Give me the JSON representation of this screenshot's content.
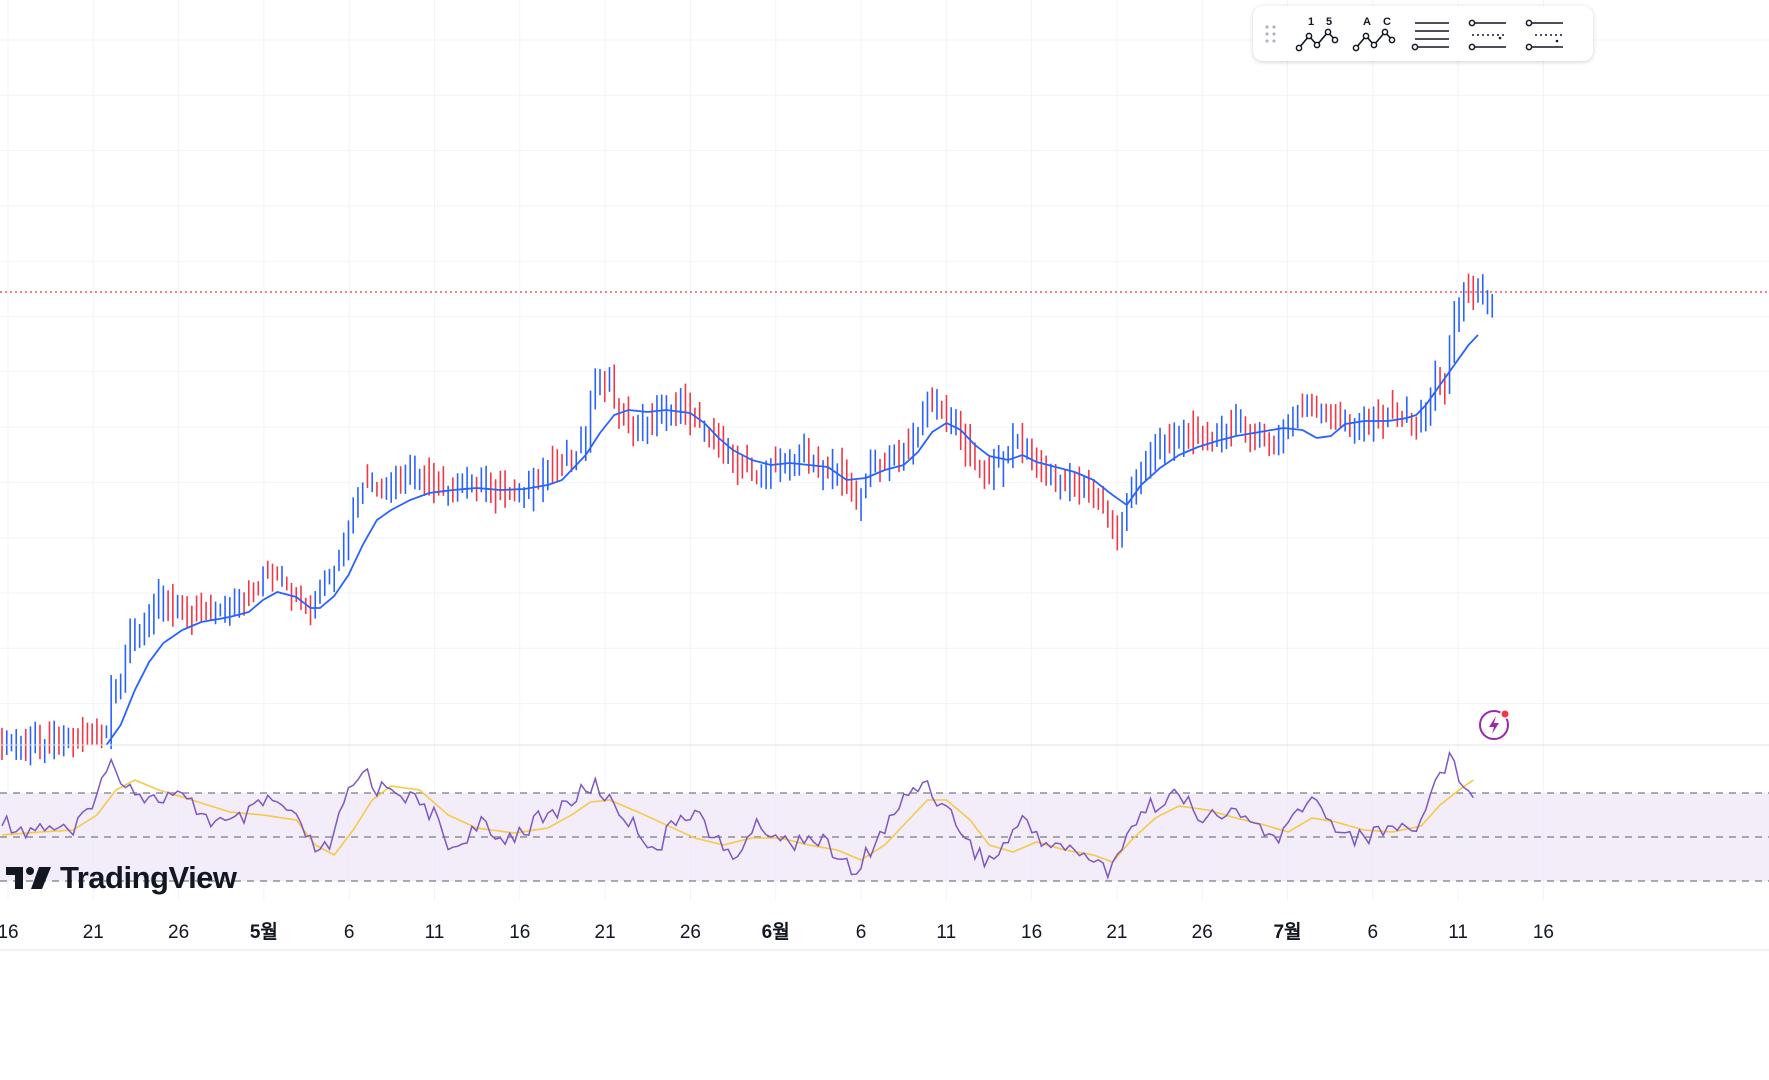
{
  "toolbar": {
    "buttons": [
      {
        "name": "numbered-pattern",
        "label_a": "1",
        "label_b": "5"
      },
      {
        "name": "lettered-pattern",
        "label_a": "A",
        "label_b": "C"
      },
      {
        "name": "horizontal-lines-icon"
      },
      {
        "name": "lines-dots-icon"
      },
      {
        "name": "lines-dots-alt-icon"
      }
    ]
  },
  "brand": {
    "name": "TradingView"
  },
  "colors": {
    "up": "#2962ff",
    "down": "#f23645",
    "ma": "#2962ff",
    "rsi": "#7e57c2",
    "rsi_ma": "#f7c948",
    "price_line": "#f23645",
    "grid": "#f0f3fa"
  },
  "chart_data": {
    "type": "candlestick",
    "x_ticks": [
      "16",
      "21",
      "26",
      "5월",
      "6",
      "11",
      "16",
      "21",
      "26",
      "6월",
      "6",
      "11",
      "16",
      "21",
      "26",
      "7월",
      "6",
      "11",
      "16"
    ],
    "bold_ticks": [
      "5월",
      "6월",
      "7월"
    ],
    "price_series": {
      "name": "price",
      "keypoints": [
        [
          0,
          745
        ],
        [
          5,
          742
        ],
        [
          15,
          738
        ],
        [
          22,
          735
        ],
        [
          23,
          690
        ],
        [
          25,
          680
        ],
        [
          27,
          640
        ],
        [
          30,
          620
        ],
        [
          33,
          600
        ],
        [
          36,
          605
        ],
        [
          40,
          615
        ],
        [
          45,
          610
        ],
        [
          50,
          605
        ],
        [
          53,
          595
        ],
        [
          55,
          575
        ],
        [
          58,
          580
        ],
        [
          60,
          590
        ],
        [
          63,
          605
        ],
        [
          65,
          615
        ],
        [
          67,
          590
        ],
        [
          70,
          570
        ],
        [
          72,
          550
        ],
        [
          74,
          510
        ],
        [
          76,
          485
        ],
        [
          80,
          490
        ],
        [
          85,
          475
        ],
        [
          88,
          470
        ],
        [
          90,
          485
        ],
        [
          95,
          490
        ],
        [
          100,
          480
        ],
        [
          105,
          495
        ],
        [
          110,
          490
        ],
        [
          113,
          480
        ],
        [
          116,
          465
        ],
        [
          118,
          465
        ],
        [
          120,
          455
        ],
        [
          123,
          440
        ],
        [
          124,
          395
        ],
        [
          126,
          380
        ],
        [
          128,
          385
        ],
        [
          130,
          410
        ],
        [
          133,
          430
        ],
        [
          136,
          420
        ],
        [
          139,
          410
        ],
        [
          142,
          405
        ],
        [
          145,
          415
        ],
        [
          148,
          425
        ],
        [
          151,
          445
        ],
        [
          154,
          460
        ],
        [
          157,
          470
        ],
        [
          160,
          475
        ],
        [
          163,
          465
        ],
        [
          166,
          460
        ],
        [
          169,
          455
        ],
        [
          172,
          465
        ],
        [
          175,
          470
        ],
        [
          178,
          480
        ],
        [
          180,
          505
        ],
        [
          182,
          475
        ],
        [
          185,
          465
        ],
        [
          188,
          455
        ],
        [
          191,
          450
        ],
        [
          193,
          430
        ],
        [
          195,
          400
        ],
        [
          197,
          405
        ],
        [
          199,
          415
        ],
        [
          201,
          425
        ],
        [
          203,
          445
        ],
        [
          205,
          465
        ],
        [
          208,
          470
        ],
        [
          211,
          460
        ],
        [
          213,
          440
        ],
        [
          215,
          445
        ],
        [
          218,
          465
        ],
        [
          220,
          475
        ],
        [
          223,
          480
        ],
        [
          226,
          485
        ],
        [
          229,
          490
        ],
        [
          232,
          505
        ],
        [
          235,
          540
        ],
        [
          237,
          505
        ],
        [
          240,
          465
        ],
        [
          243,
          450
        ],
        [
          246,
          440
        ],
        [
          249,
          430
        ],
        [
          252,
          440
        ],
        [
          255,
          435
        ],
        [
          258,
          430
        ],
        [
          261,
          425
        ],
        [
          263,
          435
        ],
        [
          265,
          440
        ],
        [
          268,
          445
        ],
        [
          270,
          430
        ],
        [
          273,
          415
        ],
        [
          275,
          405
        ],
        [
          278,
          412
        ],
        [
          281,
          420
        ],
        [
          285,
          425
        ],
        [
          290,
          420
        ],
        [
          293,
          410
        ],
        [
          296,
          418
        ],
        [
          298,
          425
        ],
        [
          300,
          415
        ],
        [
          302,
          375
        ],
        [
          304,
          385
        ],
        [
          306,
          320
        ],
        [
          308,
          290
        ],
        [
          311,
          292
        ],
        [
          314,
          295
        ]
      ]
    },
    "ma_series": {
      "name": "MA",
      "keypoints": [
        [
          22,
          745
        ],
        [
          25,
          725
        ],
        [
          28,
          690
        ],
        [
          31,
          662
        ],
        [
          34,
          643
        ],
        [
          38,
          630
        ],
        [
          42,
          622
        ],
        [
          48,
          617
        ],
        [
          52,
          612
        ],
        [
          55,
          600
        ],
        [
          58,
          592
        ],
        [
          62,
          597
        ],
        [
          65,
          608
        ],
        [
          67,
          608
        ],
        [
          70,
          596
        ],
        [
          73,
          575
        ],
        [
          76,
          545
        ],
        [
          79,
          520
        ],
        [
          82,
          510
        ],
        [
          86,
          500
        ],
        [
          90,
          493
        ],
        [
          95,
          490
        ],
        [
          100,
          488
        ],
        [
          105,
          490
        ],
        [
          110,
          489
        ],
        [
          115,
          485
        ],
        [
          118,
          480
        ],
        [
          120,
          470
        ],
        [
          123,
          455
        ],
        [
          126,
          433
        ],
        [
          129,
          415
        ],
        [
          132,
          410
        ],
        [
          136,
          412
        ],
        [
          140,
          410
        ],
        [
          145,
          413
        ],
        [
          148,
          423
        ],
        [
          151,
          438
        ],
        [
          154,
          450
        ],
        [
          158,
          460
        ],
        [
          162,
          465
        ],
        [
          166,
          463
        ],
        [
          170,
          465
        ],
        [
          174,
          467
        ],
        [
          178,
          480
        ],
        [
          182,
          478
        ],
        [
          186,
          470
        ],
        [
          190,
          465
        ],
        [
          193,
          452
        ],
        [
          196,
          432
        ],
        [
          199,
          423
        ],
        [
          202,
          430
        ],
        [
          205,
          445
        ],
        [
          208,
          456
        ],
        [
          212,
          460
        ],
        [
          215,
          455
        ],
        [
          218,
          462
        ],
        [
          222,
          467
        ],
        [
          226,
          472
        ],
        [
          230,
          480
        ],
        [
          234,
          495
        ],
        [
          237,
          505
        ],
        [
          240,
          485
        ],
        [
          244,
          468
        ],
        [
          248,
          455
        ],
        [
          252,
          447
        ],
        [
          256,
          441
        ],
        [
          260,
          436
        ],
        [
          265,
          432
        ],
        [
          270,
          428
        ],
        [
          274,
          430
        ],
        [
          277,
          438
        ],
        [
          280,
          436
        ],
        [
          283,
          424
        ],
        [
          287,
          421
        ],
        [
          292,
          421
        ],
        [
          296,
          418
        ],
        [
          298,
          415
        ],
        [
          300,
          405
        ],
        [
          303,
          385
        ],
        [
          306,
          365
        ],
        [
          309,
          345
        ],
        [
          311,
          335
        ]
      ]
    },
    "rsi_series": {
      "name": "RSI",
      "keypoints": [
        [
          0,
          820
        ],
        [
          5,
          830
        ],
        [
          10,
          825
        ],
        [
          15,
          835
        ],
        [
          18,
          810
        ],
        [
          20,
          790
        ],
        [
          23,
          765
        ],
        [
          25,
          775
        ],
        [
          28,
          790
        ],
        [
          32,
          800
        ],
        [
          36,
          795
        ],
        [
          40,
          805
        ],
        [
          44,
          820
        ],
        [
          48,
          825
        ],
        [
          52,
          815
        ],
        [
          56,
          800
        ],
        [
          60,
          810
        ],
        [
          64,
          835
        ],
        [
          67,
          855
        ],
        [
          69,
          845
        ],
        [
          71,
          820
        ],
        [
          73,
          795
        ],
        [
          75,
          780
        ],
        [
          77,
          770
        ],
        [
          79,
          790
        ],
        [
          82,
          785
        ],
        [
          85,
          795
        ],
        [
          88,
          805
        ],
        [
          91,
          815
        ],
        [
          93,
          835
        ],
        [
          95,
          850
        ],
        [
          98,
          835
        ],
        [
          101,
          825
        ],
        [
          104,
          840
        ],
        [
          107,
          835
        ],
        [
          110,
          830
        ],
        [
          113,
          820
        ],
        [
          116,
          815
        ],
        [
          118,
          805
        ],
        [
          120,
          800
        ],
        [
          123,
          790
        ],
        [
          125,
          785
        ],
        [
          127,
          795
        ],
        [
          130,
          810
        ],
        [
          133,
          825
        ],
        [
          136,
          840
        ],
        [
          138,
          850
        ],
        [
          140,
          835
        ],
        [
          143,
          815
        ],
        [
          146,
          810
        ],
        [
          149,
          830
        ],
        [
          152,
          850
        ],
        [
          154,
          860
        ],
        [
          156,
          845
        ],
        [
          158,
          830
        ],
        [
          160,
          825
        ],
        [
          163,
          835
        ],
        [
          166,
          845
        ],
        [
          169,
          835
        ],
        [
          172,
          840
        ],
        [
          175,
          850
        ],
        [
          178,
          865
        ],
        [
          180,
          880
        ],
        [
          182,
          855
        ],
        [
          185,
          835
        ],
        [
          188,
          815
        ],
        [
          190,
          800
        ],
        [
          192,
          790
        ],
        [
          194,
          780
        ],
        [
          196,
          790
        ],
        [
          198,
          805
        ],
        [
          201,
          820
        ],
        [
          204,
          845
        ],
        [
          207,
          860
        ],
        [
          210,
          855
        ],
        [
          213,
          830
        ],
        [
          216,
          820
        ],
        [
          219,
          840
        ],
        [
          222,
          845
        ],
        [
          225,
          850
        ],
        [
          228,
          855
        ],
        [
          231,
          860
        ],
        [
          233,
          880
        ],
        [
          235,
          850
        ],
        [
          238,
          825
        ],
        [
          241,
          810
        ],
        [
          244,
          800
        ],
        [
          247,
          795
        ],
        [
          250,
          805
        ],
        [
          253,
          815
        ],
        [
          256,
          820
        ],
        [
          259,
          810
        ],
        [
          262,
          820
        ],
        [
          265,
          825
        ],
        [
          267,
          835
        ],
        [
          269,
          845
        ],
        [
          271,
          825
        ],
        [
          274,
          805
        ],
        [
          276,
          800
        ],
        [
          278,
          810
        ],
        [
          281,
          825
        ],
        [
          284,
          835
        ],
        [
          287,
          840
        ],
        [
          290,
          830
        ],
        [
          293,
          825
        ],
        [
          296,
          830
        ],
        [
          299,
          820
        ],
        [
          301,
          795
        ],
        [
          303,
          770
        ],
        [
          305,
          760
        ],
        [
          307,
          775
        ],
        [
          310,
          790
        ]
      ]
    },
    "rsi_ma_series": {
      "name": "RSI MA",
      "keypoints": [
        [
          0,
          835
        ],
        [
          8,
          832
        ],
        [
          15,
          830
        ],
        [
          20,
          815
        ],
        [
          24,
          790
        ],
        [
          28,
          780
        ],
        [
          33,
          790
        ],
        [
          40,
          800
        ],
        [
          48,
          812
        ],
        [
          55,
          815
        ],
        [
          62,
          820
        ],
        [
          66,
          845
        ],
        [
          70,
          855
        ],
        [
          74,
          830
        ],
        [
          78,
          800
        ],
        [
          82,
          786
        ],
        [
          88,
          790
        ],
        [
          94,
          815
        ],
        [
          100,
          828
        ],
        [
          108,
          833
        ],
        [
          115,
          828
        ],
        [
          120,
          815
        ],
        [
          124,
          802
        ],
        [
          128,
          800
        ],
        [
          134,
          812
        ],
        [
          140,
          825
        ],
        [
          146,
          838
        ],
        [
          152,
          845
        ],
        [
          158,
          838
        ],
        [
          164,
          838
        ],
        [
          170,
          845
        ],
        [
          176,
          850
        ],
        [
          181,
          860
        ],
        [
          186,
          845
        ],
        [
          191,
          820
        ],
        [
          195,
          800
        ],
        [
          199,
          800
        ],
        [
          204,
          820
        ],
        [
          208,
          845
        ],
        [
          213,
          852
        ],
        [
          218,
          842
        ],
        [
          224,
          850
        ],
        [
          230,
          855
        ],
        [
          234,
          862
        ],
        [
          238,
          840
        ],
        [
          243,
          818
        ],
        [
          248,
          806
        ],
        [
          254,
          810
        ],
        [
          260,
          818
        ],
        [
          266,
          825
        ],
        [
          271,
          832
        ],
        [
          276,
          818
        ],
        [
          281,
          822
        ],
        [
          287,
          830
        ],
        [
          293,
          832
        ],
        [
          299,
          826
        ],
        [
          303,
          805
        ],
        [
          307,
          790
        ],
        [
          310,
          780
        ]
      ]
    },
    "rsi_levels": {
      "overbought": 793,
      "middle": 837,
      "oversold": 881
    },
    "current_price_line": 292,
    "visible_bars": 315
  }
}
